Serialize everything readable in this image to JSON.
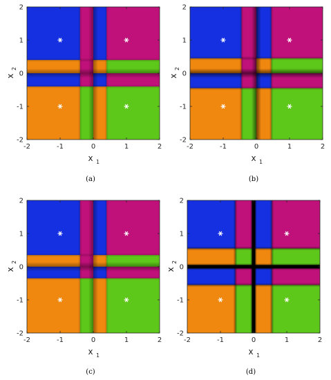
{
  "colors": {
    "blue": "#1530e0",
    "magenta": "#c0107a",
    "orange": "#f0880f",
    "green": "#5ec81a",
    "black": "#000000",
    "marker": "#ffffff"
  },
  "chart_data": [
    {
      "panel": "a",
      "caption": "(a)",
      "type": "heatmap",
      "xlabel": "x",
      "xlabel_sub": "1",
      "ylabel": "x",
      "ylabel_sub": "2",
      "xlim": [
        -2,
        2
      ],
      "ylim": [
        -2,
        2
      ],
      "xticks": [
        "-2",
        "-1",
        "0",
        "1",
        "2"
      ],
      "yticks": [
        "-2",
        "-1",
        "0",
        "1",
        "2"
      ],
      "split_x": [
        -0.4,
        0,
        0.4
      ],
      "split_y": [
        -0.4,
        0,
        0.4
      ],
      "regions": [
        [
          "blue",
          "magenta",
          "blue",
          "magenta"
        ],
        [
          "orange",
          "magenta",
          "orange",
          "green"
        ],
        [
          "blue",
          "magenta",
          "blue",
          "magenta"
        ],
        [
          "orange",
          "green",
          "orange",
          "green"
        ]
      ],
      "centers": [
        [
          -1,
          1
        ],
        [
          1,
          1
        ],
        [
          -1,
          -1
        ],
        [
          1,
          -1
        ]
      ],
      "boundary_shade": "soft"
    },
    {
      "panel": "b",
      "caption": "(b)",
      "type": "heatmap",
      "xlabel": "x",
      "xlabel_sub": "1",
      "ylabel": "x",
      "ylabel_sub": "2",
      "xlim": [
        -2,
        2
      ],
      "ylim": [
        -2,
        2
      ],
      "xticks": [
        "-2",
        "-1",
        "0",
        "1",
        "2"
      ],
      "yticks": [
        "-2",
        "-1",
        "0",
        "1",
        "2"
      ],
      "split_x": [
        -0.45,
        0,
        0.45
      ],
      "split_y": [
        -0.45,
        0,
        0.45
      ],
      "regions": [
        [
          "blue",
          "magenta",
          "blue",
          "magenta"
        ],
        [
          "orange",
          "magenta",
          "orange",
          "green"
        ],
        [
          "blue",
          "magenta",
          "blue",
          "magenta"
        ],
        [
          "orange",
          "green",
          "orange",
          "green"
        ]
      ],
      "centers": [
        [
          -1,
          1
        ],
        [
          1,
          1
        ],
        [
          -1,
          -1
        ],
        [
          1,
          -1
        ]
      ],
      "boundary_shade": "medium"
    },
    {
      "panel": "c",
      "caption": "(c)",
      "type": "heatmap",
      "xlabel": "x",
      "xlabel_sub": "1",
      "ylabel": "x",
      "ylabel_sub": "2",
      "xlim": [
        -2,
        2
      ],
      "ylim": [
        -2,
        2
      ],
      "xticks": [
        "-2",
        "-1",
        "0",
        "1",
        "2"
      ],
      "yticks": [
        "-2",
        "-1",
        "0",
        "1",
        "2"
      ],
      "split_x": [
        -0.4,
        0,
        0.4
      ],
      "split_y": [
        -0.35,
        0,
        0.35
      ],
      "regions": [
        [
          "blue",
          "magenta",
          "blue",
          "magenta"
        ],
        [
          "orange",
          "magenta",
          "orange",
          "green"
        ],
        [
          "blue",
          "magenta",
          "blue",
          "magenta"
        ],
        [
          "orange",
          "green",
          "orange",
          "green"
        ]
      ],
      "centers": [
        [
          -1,
          1
        ],
        [
          1,
          1
        ],
        [
          -1,
          -1
        ],
        [
          1,
          -1
        ]
      ],
      "boundary_shade": "soft"
    },
    {
      "panel": "d",
      "caption": "(d)",
      "type": "heatmap",
      "xlabel": "x",
      "xlabel_sub": "1",
      "ylabel": "x",
      "ylabel_sub": "2",
      "xlim": [
        -2,
        2
      ],
      "ylim": [
        -2,
        2
      ],
      "xticks": [
        "-2",
        "-1",
        "0",
        "1",
        "2"
      ],
      "yticks": [
        "-2",
        "-1",
        "0",
        "1",
        "2"
      ],
      "split_x": [
        -0.55,
        0,
        0.55
      ],
      "split_y": [
        -0.55,
        0,
        0.55
      ],
      "regions": [
        [
          "blue",
          "magenta",
          "blue",
          "magenta"
        ],
        [
          "orange",
          "green",
          "orange",
          "green"
        ],
        [
          "blue",
          "magenta",
          "blue",
          "magenta"
        ],
        [
          "orange",
          "green",
          "orange",
          "green"
        ]
      ],
      "centers": [
        [
          -1,
          1
        ],
        [
          1,
          1
        ],
        [
          -1,
          -1
        ],
        [
          1,
          -1
        ]
      ],
      "boundary_shade": "black"
    }
  ]
}
